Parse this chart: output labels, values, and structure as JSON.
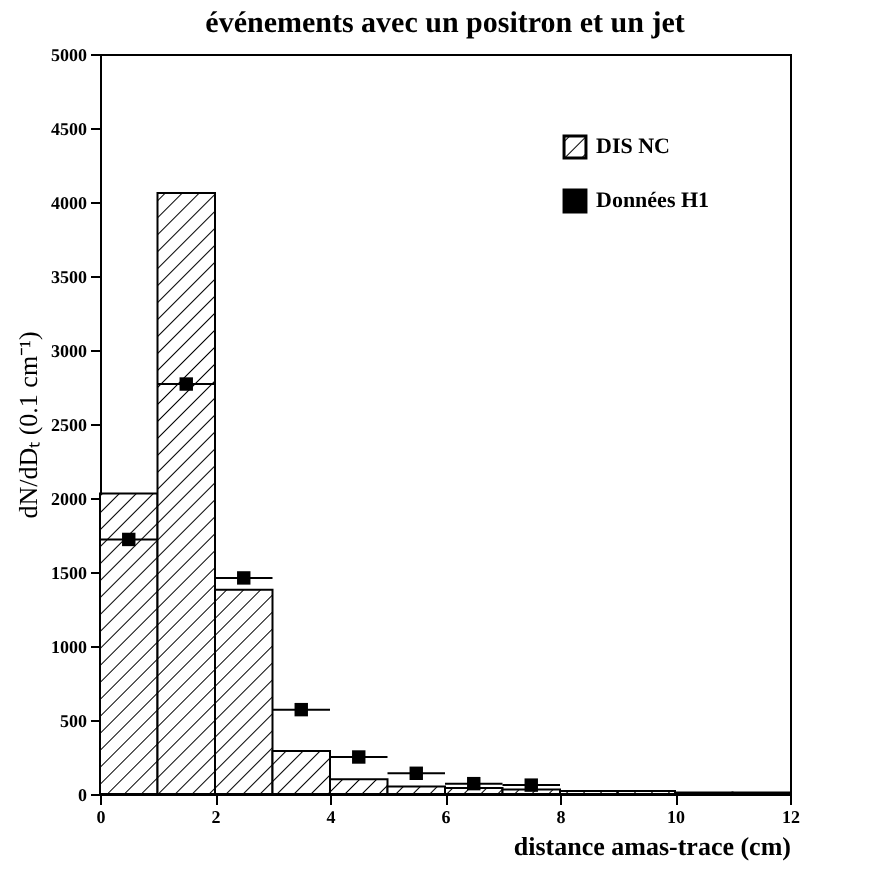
{
  "chart_data": {
    "type": "histogram",
    "title": "événements avec un positron et un jet",
    "xlabel": "distance amas-trace    (cm)",
    "ylabel": "dN/dDₜ (0.1 cm⁻¹)",
    "bins": [
      0,
      1,
      2,
      3,
      4,
      5,
      6,
      7,
      8,
      9,
      10,
      11,
      12
    ],
    "series": [
      {
        "name": "DIS NC",
        "color": "#000000",
        "values": [
          2030,
          4060,
          1380,
          290,
          100,
          50,
          40,
          30,
          20,
          20,
          10,
          10
        ]
      },
      {
        "name": "Données H1",
        "type": "scatter",
        "color": "#000000",
        "x": [
          0.5,
          1.5,
          2.5,
          3.5,
          4.5,
          5.5,
          6.5,
          7.5
        ],
        "values": [
          1720,
          2770,
          1460,
          570,
          250,
          140,
          70,
          60
        ],
        "xerrors": [
          0.5,
          0.5,
          0.5,
          0.5,
          0.5,
          0.5,
          0.5,
          0.5
        ]
      }
    ],
    "xlim": [
      0,
      12
    ],
    "ylim": [
      0,
      5000
    ],
    "xticks": [
      0,
      2,
      4,
      6,
      8,
      10,
      12
    ],
    "yticks": [
      0,
      500,
      1000,
      1500,
      2000,
      2500,
      3000,
      3500,
      4000,
      4500,
      5000
    ],
    "legend": "top right",
    "marker": "square",
    "grid": false
  }
}
